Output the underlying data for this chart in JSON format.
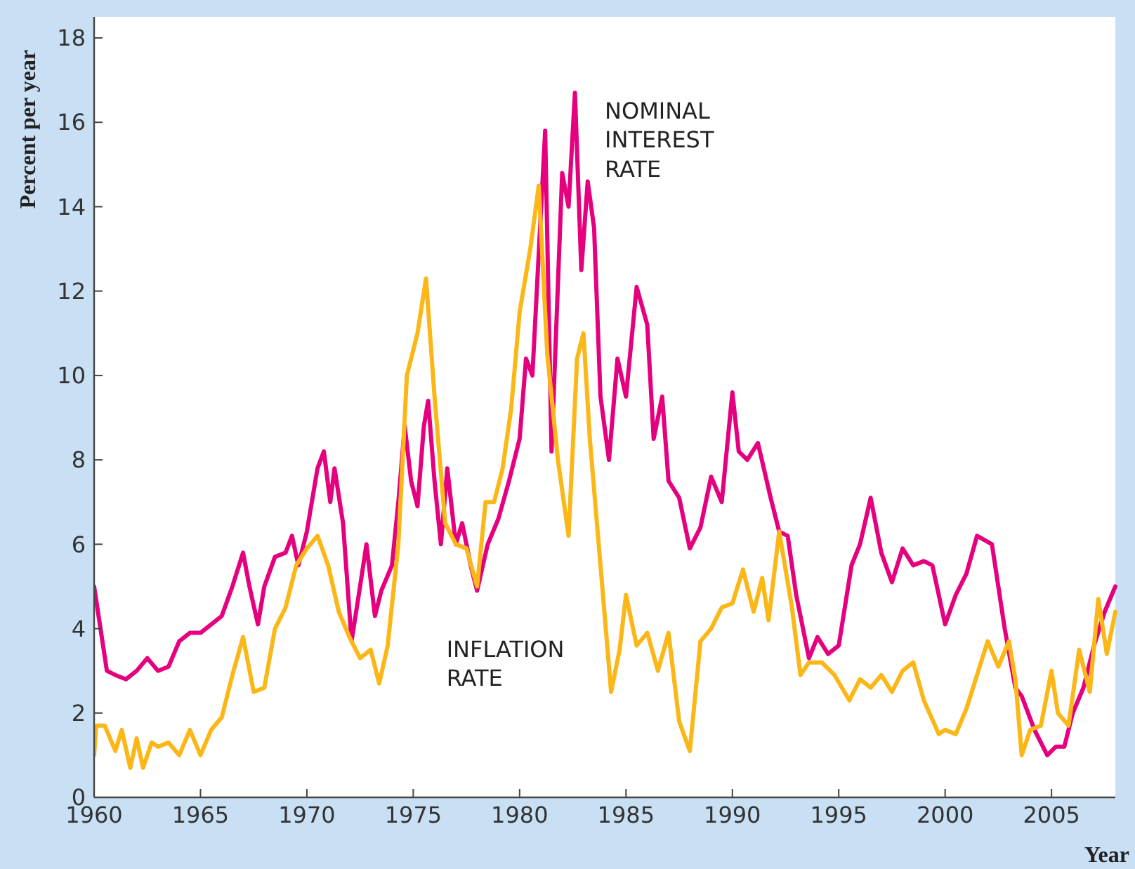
{
  "chart_data": {
    "type": "line",
    "xlabel": "Year",
    "ylabel": "Percent per year",
    "xlim": [
      1960,
      2008
    ],
    "xticks": [
      1960,
      1965,
      1970,
      1975,
      1980,
      1985,
      1990,
      1995,
      2000,
      2005
    ],
    "ylim": [
      0,
      18.5
    ],
    "yticks": [
      0,
      2,
      4,
      6,
      8,
      10,
      12,
      14,
      16,
      18
    ],
    "grid": false,
    "legend": false,
    "marker": "none",
    "line_style": "solid",
    "series": [
      {
        "name": "NOMINAL INTEREST RATE",
        "color": "#e5007e",
        "x": [
          1960,
          1960.3,
          1960.6,
          1961,
          1961.5,
          1962,
          1962.5,
          1963,
          1963.5,
          1964,
          1964.5,
          1965,
          1965.5,
          1966,
          1966.5,
          1967,
          1967.3,
          1967.7,
          1968,
          1968.5,
          1969,
          1969.3,
          1969.6,
          1970,
          1970.5,
          1970.8,
          1971.1,
          1971.3,
          1971.7,
          1972.1,
          1972.5,
          1972.8,
          1973.2,
          1973.5,
          1974,
          1974.3,
          1974.6,
          1974.9,
          1975.2,
          1975.5,
          1975.7,
          1976,
          1976.3,
          1976.6,
          1977,
          1977.3,
          1977.7,
          1978,
          1978.5,
          1979,
          1979.5,
          1980,
          1980.3,
          1980.6,
          1981.2,
          1981.5,
          1982,
          1982.3,
          1982.6,
          1982.9,
          1983.2,
          1983.5,
          1983.8,
          1984.2,
          1984.6,
          1985,
          1985.5,
          1986,
          1986.3,
          1986.7,
          1987,
          1987.5,
          1988,
          1988.5,
          1989,
          1989.5,
          1990,
          1990.3,
          1990.7,
          1991.2,
          1991.8,
          1992.2,
          1992.6,
          1993,
          1993.6,
          1994,
          1994.5,
          1995,
          1995.6,
          1996,
          1996.5,
          1997,
          1997.5,
          1998,
          1998.5,
          1999,
          1999.4,
          2000,
          2000.5,
          2001,
          2001.5,
          2002.2,
          2002.8,
          2003.3,
          2003.6,
          2004.2,
          2004.8,
          2005.2,
          2005.6,
          2006,
          2006.5,
          2007,
          2007.5,
          2008
        ],
        "values": [
          5.0,
          4.0,
          3.0,
          2.9,
          2.8,
          3.0,
          3.3,
          3.0,
          3.1,
          3.7,
          3.9,
          3.9,
          4.1,
          4.3,
          5.0,
          5.8,
          5.0,
          4.1,
          5.0,
          5.7,
          5.8,
          6.2,
          5.5,
          6.3,
          7.8,
          8.2,
          7.0,
          7.8,
          6.5,
          3.7,
          5.0,
          6.0,
          4.3,
          4.9,
          5.5,
          7.0,
          8.8,
          7.5,
          6.9,
          8.8,
          9.4,
          7.5,
          6.0,
          7.8,
          6.0,
          6.5,
          5.5,
          4.9,
          6.0,
          6.6,
          7.5,
          8.5,
          10.4,
          10.0,
          15.8,
          8.2,
          14.8,
          14.0,
          16.7,
          12.5,
          14.6,
          13.5,
          9.5,
          8.0,
          10.4,
          9.5,
          12.1,
          11.2,
          8.5,
          9.5,
          7.5,
          7.1,
          5.9,
          6.4,
          7.6,
          7.0,
          9.6,
          8.2,
          8.0,
          8.4,
          7.1,
          6.3,
          6.2,
          4.8,
          3.3,
          3.8,
          3.4,
          3.6,
          5.5,
          6.0,
          7.1,
          5.8,
          5.1,
          5.9,
          5.5,
          5.6,
          5.5,
          4.1,
          4.8,
          5.3,
          6.2,
          6.0,
          4.0,
          2.6,
          2.4,
          1.6,
          1.0,
          1.2,
          1.2,
          2.0,
          2.6,
          3.6,
          4.4,
          5.0
        ]
      },
      {
        "name": "INFLATION RATE",
        "color": "#fbb717",
        "x": [
          1960,
          1960.1,
          1960.5,
          1961,
          1961.3,
          1961.7,
          1962,
          1962.3,
          1962.7,
          1963,
          1963.5,
          1964,
          1964.5,
          1965,
          1965.5,
          1966,
          1966.5,
          1967,
          1967.5,
          1968,
          1968.5,
          1969,
          1969.5,
          1970,
          1970.5,
          1971,
          1971.5,
          1972,
          1972.5,
          1973,
          1973.4,
          1973.8,
          1974.3,
          1974.7,
          1975.2,
          1975.6,
          1976,
          1976.5,
          1977,
          1977.5,
          1978,
          1978.4,
          1978.8,
          1979.2,
          1979.6,
          1980,
          1980.5,
          1980.9,
          1981.3,
          1981.8,
          1982.3,
          1982.7,
          1983,
          1983.3,
          1983.8,
          1984.3,
          1984.7,
          1985,
          1985.5,
          1986,
          1986.5,
          1987,
          1987.5,
          1988,
          1988.5,
          1989,
          1989.5,
          1990,
          1990.5,
          1991,
          1991.4,
          1991.7,
          1992.2,
          1992.8,
          1993.2,
          1993.6,
          1994.2,
          1994.8,
          1995.5,
          1996,
          1996.5,
          1997,
          1997.5,
          1998,
          1998.5,
          1999,
          1999.7,
          2000,
          2000.5,
          2001,
          2001.5,
          2002,
          2002.5,
          2003,
          2003.3,
          2003.6,
          2004,
          2004.5,
          2005,
          2005.3,
          2005.8,
          2006.3,
          2006.8,
          2007.2,
          2007.6,
          2008
        ],
        "values": [
          1.0,
          1.7,
          1.7,
          1.1,
          1.6,
          0.7,
          1.4,
          0.7,
          1.3,
          1.2,
          1.3,
          1.0,
          1.6,
          1.0,
          1.6,
          1.9,
          2.9,
          3.8,
          2.5,
          2.6,
          4.0,
          4.5,
          5.5,
          5.9,
          6.2,
          5.5,
          4.4,
          3.8,
          3.3,
          3.5,
          2.7,
          3.6,
          6.0,
          10.0,
          11.0,
          12.3,
          9.5,
          6.5,
          6.0,
          5.9,
          5.0,
          7.0,
          7.0,
          7.8,
          9.2,
          11.5,
          13.0,
          14.5,
          10.5,
          8.0,
          6.2,
          10.4,
          11.0,
          8.5,
          5.5,
          2.5,
          3.5,
          4.8,
          3.6,
          3.9,
          3.0,
          3.9,
          1.8,
          1.1,
          3.7,
          4.0,
          4.5,
          4.6,
          5.4,
          4.4,
          5.2,
          4.2,
          6.3,
          4.5,
          2.9,
          3.2,
          3.2,
          2.9,
          2.3,
          2.8,
          2.6,
          2.9,
          2.5,
          3.0,
          3.2,
          2.3,
          1.5,
          1.6,
          1.5,
          2.1,
          2.9,
          3.7,
          3.1,
          3.7,
          2.8,
          1.0,
          1.6,
          1.7,
          3.0,
          2.0,
          1.7,
          3.5,
          2.5,
          4.7,
          3.4,
          4.4
        ]
      }
    ]
  }
}
